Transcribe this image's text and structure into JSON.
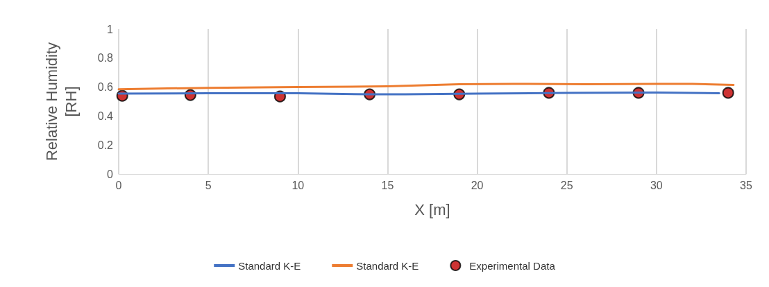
{
  "chart_data": {
    "type": "line",
    "xlabel": "X [m]",
    "ylabel": "Relative Humidity\n[RH]",
    "xlim": [
      0,
      35
    ],
    "xticks": [
      0,
      5,
      10,
      15,
      20,
      25,
      30,
      35
    ],
    "ylim": [
      0,
      1
    ],
    "yticks": [
      0,
      0.2,
      0.4,
      0.6,
      0.8,
      1
    ],
    "grid": "x",
    "legend": "bottom",
    "series": [
      {
        "name": "Standard K-E",
        "color": "#4472c4",
        "marker": "none",
        "x": [
          0,
          5,
          10,
          14,
          16,
          20,
          25,
          30,
          33.5
        ],
        "values": [
          0.555,
          0.557,
          0.557,
          0.55,
          0.55,
          0.555,
          0.56,
          0.562,
          0.558
        ]
      },
      {
        "name": "Standard K-E",
        "color": "#ed7d31",
        "marker": "none",
        "x": [
          0,
          5,
          10,
          15,
          17,
          19,
          22,
          26,
          30,
          32,
          34.3
        ],
        "values": [
          0.585,
          0.595,
          0.6,
          0.605,
          0.612,
          0.62,
          0.622,
          0.62,
          0.622,
          0.622,
          0.615
        ]
      },
      {
        "name": "Experimental Data",
        "type": "scatter",
        "color": "#c00000",
        "marker": "circle",
        "x": [
          0.2,
          4,
          9,
          14,
          19,
          24,
          29,
          34
        ],
        "values": [
          0.54,
          0.545,
          0.535,
          0.55,
          0.55,
          0.56,
          0.56,
          0.56
        ]
      }
    ]
  }
}
